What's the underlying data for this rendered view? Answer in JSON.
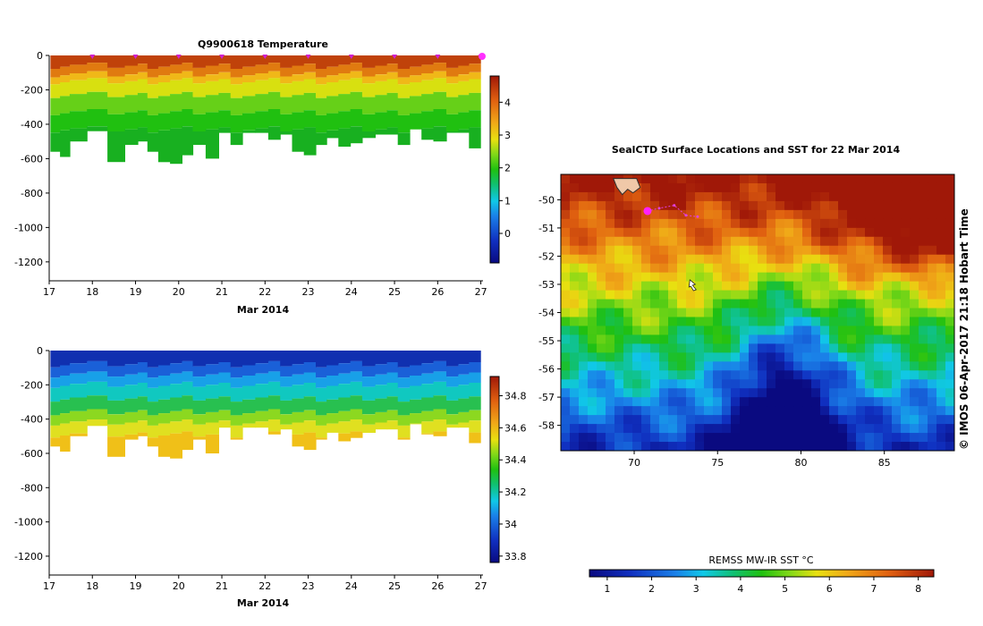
{
  "chart_data": [
    {
      "id": "temperature",
      "type": "heatmap",
      "title": "Q9900618  Temperature",
      "xlabel": "Mar 2014",
      "ylabel": "",
      "x_ticks": [
        "17",
        "18",
        "19",
        "20",
        "21",
        "22",
        "23",
        "24",
        "25",
        "26",
        "27"
      ],
      "y_ticks": [
        "0",
        "-200",
        "-400",
        "-600",
        "-800",
        "-1000",
        "-1200"
      ],
      "xlim": [
        17,
        27.05
      ],
      "ylim": [
        -1310,
        0
      ],
      "colorbar": {
        "ticks": [
          "0",
          "1",
          "2",
          "3",
          "4"
        ],
        "range": [
          -0.9,
          4.8
        ]
      },
      "profiles": {
        "times": [
          17.15,
          17.35,
          17.6,
          18.15,
          18.55,
          18.95,
          19.15,
          19.4,
          19.65,
          19.95,
          20.2,
          20.45,
          20.8,
          21.05,
          21.35,
          21.6,
          21.95,
          22.2,
          22.5,
          22.75,
          23.05,
          23.3,
          23.55,
          23.85,
          24.1,
          24.4,
          24.7,
          24.95,
          25.2,
          25.5,
          25.75,
          26.05,
          26.35,
          26.6,
          26.85
        ],
        "max_depth": [
          -560,
          -590,
          -500,
          -440,
          -620,
          -520,
          -500,
          -560,
          -620,
          -630,
          -580,
          -520,
          -600,
          -450,
          -520,
          -450,
          -450,
          -490,
          -460,
          -560,
          -580,
          -520,
          -480,
          -530,
          -510,
          -480,
          -460,
          -460,
          -520,
          -430,
          -490,
          -500,
          -450,
          -450,
          -540
        ]
      },
      "color_stops": [
        {
          "v": 4.6,
          "color": "#c0420a"
        },
        {
          "v": 3.9,
          "color": "#e07a10"
        },
        {
          "v": 3.2,
          "color": "#f0b818"
        },
        {
          "v": 2.9,
          "color": "#d8e010"
        },
        {
          "v": 2.5,
          "color": "#66d018"
        },
        {
          "v": 2.1,
          "color": "#20c010"
        },
        {
          "v": 1.5,
          "color": "#18b020"
        }
      ],
      "layer_depths": [
        0,
        -60,
        -110,
        -150,
        -230,
        -330,
        -430,
        -560
      ]
    },
    {
      "id": "salinity",
      "type": "heatmap",
      "title": "",
      "xlabel": "Mar 2014",
      "ylabel": "",
      "x_ticks": [
        "17",
        "18",
        "19",
        "20",
        "21",
        "22",
        "23",
        "24",
        "25",
        "26",
        "27"
      ],
      "y_ticks": [
        "0",
        "-200",
        "-400",
        "-600",
        "-800",
        "-1000",
        "-1200"
      ],
      "xlim": [
        17,
        27.05
      ],
      "ylim": [
        -1310,
        0
      ],
      "colorbar": {
        "ticks": [
          "33.8",
          "34",
          "34.2",
          "34.4",
          "34.6",
          "34.8"
        ],
        "range": [
          33.76,
          34.92
        ]
      },
      "color_stops": [
        {
          "v": 33.78,
          "color": "#1030b0"
        },
        {
          "v": 33.9,
          "color": "#1a60d8"
        },
        {
          "v": 34.0,
          "color": "#18a0e8"
        },
        {
          "v": 34.1,
          "color": "#10c8c0"
        },
        {
          "v": 34.25,
          "color": "#28c050"
        },
        {
          "v": 34.4,
          "color": "#8cd820"
        },
        {
          "v": 34.5,
          "color": "#e0e020"
        },
        {
          "v": 34.62,
          "color": "#f0c018"
        }
      ],
      "layer_depths": [
        0,
        -80,
        -140,
        -200,
        -280,
        -360,
        -420,
        -490,
        -560
      ]
    },
    {
      "id": "sst-map",
      "type": "heatmap",
      "title": "SealCTD Surface Locations and SST for 22 Mar 2014",
      "x_ticks": [
        "70",
        "75",
        "80",
        "85"
      ],
      "y_ticks": [
        "-50",
        "-51",
        "-52",
        "-53",
        "-54",
        "-55",
        "-56",
        "-57",
        "-58"
      ],
      "xlim": [
        65.6,
        89.2
      ],
      "ylim": [
        -58.9,
        -49.1
      ],
      "colorbar": {
        "label": "REMSS MW-IR SST °C",
        "ticks": [
          "1",
          "2",
          "3",
          "4",
          "5",
          "6",
          "7",
          "8"
        ],
        "range": [
          0.6,
          8.35
        ]
      },
      "track": [
        [
          70.8,
          -50.4
        ],
        [
          71.5,
          -50.3
        ],
        [
          72.4,
          -50.2
        ],
        [
          73.1,
          -50.55
        ],
        [
          73.8,
          -50.6
        ]
      ],
      "current_position": [
        70.8,
        -50.4
      ],
      "island_position": [
        73.5,
        -53.0
      ],
      "land_position": [
        69.5,
        -49.5
      ]
    }
  ],
  "copyright": "© IMOS 06-Apr-2017 21:18 Hobart Time"
}
